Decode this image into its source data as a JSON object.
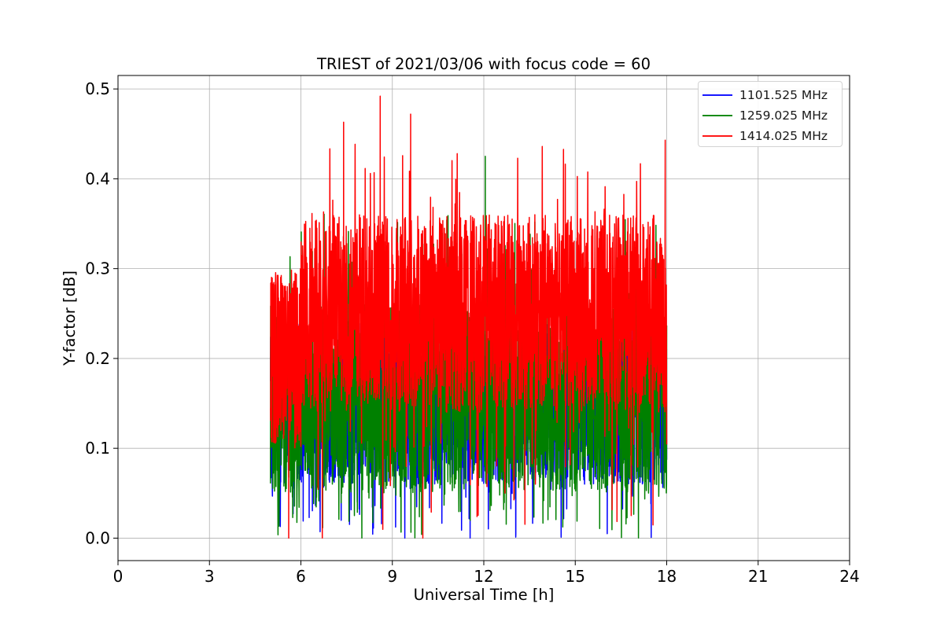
{
  "chart_data": {
    "type": "line",
    "title": "TRIEST of 2021/03/06 with focus code = 60",
    "xlabel": "Universal Time [h]",
    "ylabel": "Y-factor [dB]",
    "xlim": [
      0,
      24
    ],
    "ylim": [
      -0.025,
      0.515
    ],
    "xticks": [
      "0",
      "3",
      "6",
      "9",
      "12",
      "15",
      "18",
      "21",
      "24"
    ],
    "yticks": [
      "0.0",
      "0.1",
      "0.2",
      "0.3",
      "0.4",
      "0.5"
    ],
    "grid": true,
    "legend_placement": "top-right",
    "series": [
      {
        "name": "1101.525 MHz",
        "color": "#0000ff",
        "x_range": [
          5.0,
          18.0
        ],
        "typical_range": [
          0.06,
          0.28
        ],
        "min": 0.0,
        "max": 0.29
      },
      {
        "name": "1259.025 MHz",
        "color": "#008000",
        "x_range": [
          5.0,
          18.0
        ],
        "typical_range": [
          0.05,
          0.3
        ],
        "min": 0.0,
        "max": 0.425
      },
      {
        "name": "1414.025 MHz",
        "color": "#ff0000",
        "x_range": [
          5.0,
          18.0
        ],
        "typical_range": [
          0.15,
          0.38
        ],
        "min": 0.0,
        "max": 0.492
      }
    ],
    "notable_points": [
      {
        "series": "1414.025 MHz",
        "x": 8.6,
        "y": 0.492
      },
      {
        "series": "1414.025 MHz",
        "x": 9.6,
        "y": 0.472
      },
      {
        "series": "1414.025 MHz",
        "x": 7.4,
        "y": 0.463
      },
      {
        "series": "1414.025 MHz",
        "x": 17.95,
        "y": 0.443
      },
      {
        "series": "1259.025 MHz",
        "x": 12.05,
        "y": 0.425
      },
      {
        "series": "1414.025 MHz",
        "x": 5.6,
        "y": 0.0
      },
      {
        "series": "1414.025 MHz",
        "x": 10.0,
        "y": 0.0
      },
      {
        "series": "1259.025 MHz",
        "x": 8.0,
        "y": 0.0
      },
      {
        "series": "1101.525 MHz",
        "x": 11.55,
        "y": 0.0
      },
      {
        "series": "1101.525 MHz",
        "x": 16.05,
        "y": 0.005
      },
      {
        "series": "1101.525 MHz",
        "x": 13.05,
        "y": 0.005
      }
    ]
  }
}
